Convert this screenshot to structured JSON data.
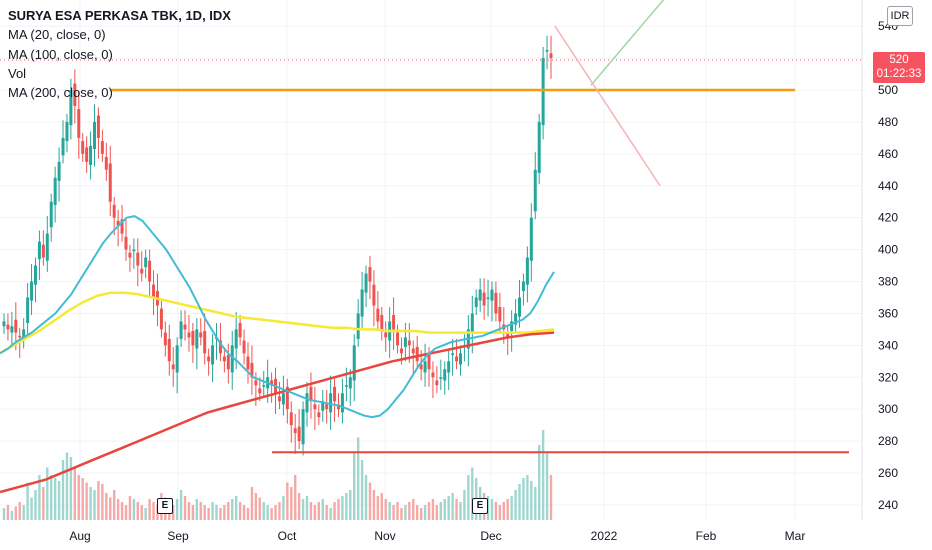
{
  "legend": {
    "title": "SURYA ESA PERKASA TBK, 1D, IDX",
    "ma20": "MA (20, close, 0)",
    "ma100": "MA (100, close, 0)",
    "vol": "Vol",
    "ma200": "MA (200, close, 0)"
  },
  "currency": "IDR",
  "last_price": {
    "value": "520",
    "countdown": "01:22:33"
  },
  "events": [
    "E",
    "E"
  ],
  "colors": {
    "up": "#26a69a",
    "down": "#ef5350",
    "ma20": "#42bcd4",
    "ma100": "#f5e936",
    "ma200": "#e8453c",
    "resistance": "#f59b0c",
    "support": "#e8453c",
    "proj_up": "#9fd8a4",
    "proj_down": "#f7b2b8",
    "price_tag": "#f7525f"
  },
  "chart_data": {
    "type": "candlestick",
    "x_axis": {
      "labels": [
        "Aug",
        "Sep",
        "Oct",
        "Nov",
        "Dec",
        "2022",
        "Feb",
        "Mar"
      ]
    },
    "y_axis": {
      "ticks": [
        240,
        260,
        280,
        300,
        320,
        340,
        360,
        380,
        400,
        420,
        440,
        460,
        480,
        500,
        520,
        540
      ],
      "range": [
        232,
        548
      ]
    },
    "closes": [
      355,
      350,
      352,
      348,
      345,
      350,
      370,
      380,
      390,
      405,
      395,
      410,
      430,
      445,
      455,
      470,
      480,
      500,
      490,
      470,
      460,
      455,
      465,
      480,
      470,
      460,
      450,
      430,
      420,
      415,
      410,
      400,
      395,
      400,
      390,
      385,
      395,
      380,
      370,
      365,
      350,
      340,
      330,
      325,
      340,
      355,
      350,
      345,
      340,
      350,
      345,
      335,
      330,
      340,
      345,
      335,
      330,
      325,
      340,
      350,
      345,
      335,
      325,
      320,
      315,
      310,
      315,
      320,
      315,
      310,
      305,
      310,
      300,
      290,
      285,
      280,
      300,
      310,
      305,
      300,
      295,
      305,
      300,
      310,
      305,
      300,
      310,
      315,
      320,
      340,
      360,
      375,
      385,
      380,
      365,
      355,
      350,
      345,
      355,
      350,
      340,
      335,
      345,
      340,
      335,
      330,
      325,
      330,
      325,
      320,
      315,
      320,
      325,
      330,
      335,
      330,
      335,
      340,
      350,
      360,
      370,
      375,
      365,
      370,
      375,
      360,
      355,
      350,
      345,
      355,
      360,
      370,
      380,
      395,
      420,
      450,
      480,
      520,
      525,
      520
    ],
    "volumes": [
      8,
      10,
      6,
      9,
      12,
      10,
      25,
      15,
      20,
      30,
      22,
      35,
      30,
      28,
      26,
      40,
      45,
      42,
      35,
      30,
      28,
      25,
      22,
      20,
      26,
      24,
      18,
      15,
      20,
      14,
      12,
      10,
      16,
      14,
      12,
      10,
      8,
      14,
      12,
      10,
      18,
      15,
      12,
      10,
      14,
      20,
      16,
      12,
      10,
      14,
      12,
      10,
      8,
      12,
      10,
      8,
      10,
      12,
      14,
      16,
      12,
      10,
      8,
      22,
      18,
      15,
      12,
      10,
      8,
      10,
      12,
      16,
      25,
      22,
      30,
      18,
      14,
      16,
      12,
      10,
      12,
      14,
      10,
      8,
      12,
      14,
      16,
      18,
      20,
      45,
      55,
      40,
      30,
      25,
      20,
      16,
      18,
      14,
      12,
      10,
      12,
      8,
      10,
      12,
      14,
      10,
      8,
      10,
      12,
      14,
      10,
      12,
      14,
      16,
      18,
      14,
      12,
      20,
      30,
      35,
      28,
      22,
      18,
      16,
      14,
      12,
      10,
      12,
      14,
      16,
      20,
      24,
      28,
      30,
      26,
      22,
      50,
      60,
      45,
      30
    ],
    "series": [
      {
        "name": "MA (20, close, 0)",
        "values": [
          335,
          338,
          342,
          345,
          348,
          352,
          356,
          360,
          366,
          372,
          380,
          388,
          396,
          404,
          410,
          415,
          420,
          421,
          418,
          412,
          406,
          400,
          392,
          384,
          376,
          366,
          356,
          348,
          340,
          334,
          330,
          325,
          320,
          318,
          316,
          314,
          312,
          310,
          308,
          306,
          305,
          304,
          303,
          302,
          300,
          298,
          296,
          295,
          296,
          300,
          306,
          312,
          320,
          328,
          334,
          338,
          340,
          342,
          343,
          344,
          345,
          346,
          348,
          350,
          352,
          354,
          356,
          360,
          368,
          378,
          386
        ]
      },
      {
        "name": "MA (100, close, 0)",
        "values": [
          335,
          340,
          345,
          350,
          356,
          362,
          367,
          371,
          373,
          373,
          372,
          370,
          368,
          366,
          364,
          362,
          360,
          358,
          357,
          356,
          355,
          354,
          353,
          352,
          351,
          351,
          350,
          350,
          349,
          349,
          349,
          348,
          348,
          348,
          348,
          348,
          348,
          348,
          348,
          349,
          350
        ]
      },
      {
        "name": "MA (200, close, 0)",
        "values": [
          248,
          252,
          256,
          262,
          268,
          274,
          280,
          286,
          292,
          298,
          302,
          306,
          310,
          314,
          318,
          322,
          326,
          330,
          333,
          336,
          339,
          342,
          345,
          347,
          348
        ]
      }
    ],
    "annotations": [
      {
        "type": "horizontal",
        "value": 500,
        "color": "orange"
      },
      {
        "type": "horizontal",
        "value": 273,
        "color": "red"
      },
      {
        "type": "projection-up",
        "from": 500
      },
      {
        "type": "projection-down",
        "from": 540,
        "to": 440
      }
    ]
  }
}
